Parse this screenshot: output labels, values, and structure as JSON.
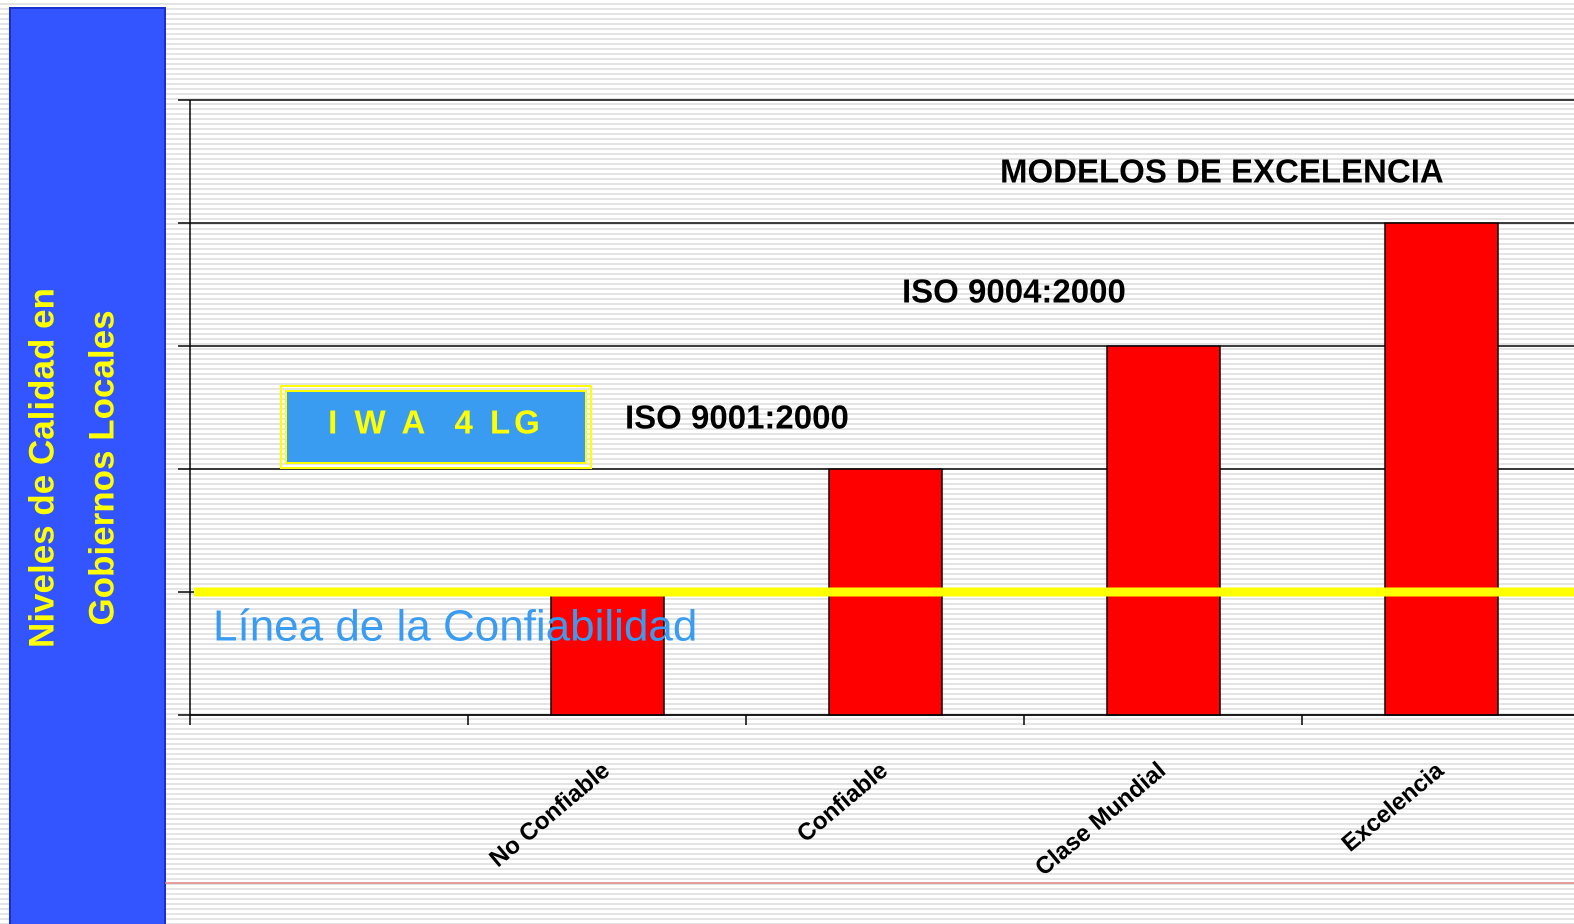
{
  "chart_data": {
    "type": "bar",
    "y_label": [
      "Niveles de Calidad en",
      "Gobiernos Locales"
    ],
    "categories": [
      null,
      "No Confiable",
      "Confiable",
      "Clase Mundial",
      "Excelencia"
    ],
    "values": [
      null,
      1,
      2,
      3,
      4
    ],
    "color": "#ff0000",
    "ylim": [
      0,
      5
    ],
    "yticks": [
      0,
      1,
      2,
      3,
      4,
      5
    ],
    "grid": true,
    "reference_line": {
      "value": 1,
      "label": "Línea de la Confiabilidad",
      "color": "#ffff00"
    },
    "annotations": [
      "MODELOS DE EXCELENCIA",
      "ISO 9004:2000",
      "ISO 9001:2000",
      "I W A  4 LG"
    ]
  }
}
